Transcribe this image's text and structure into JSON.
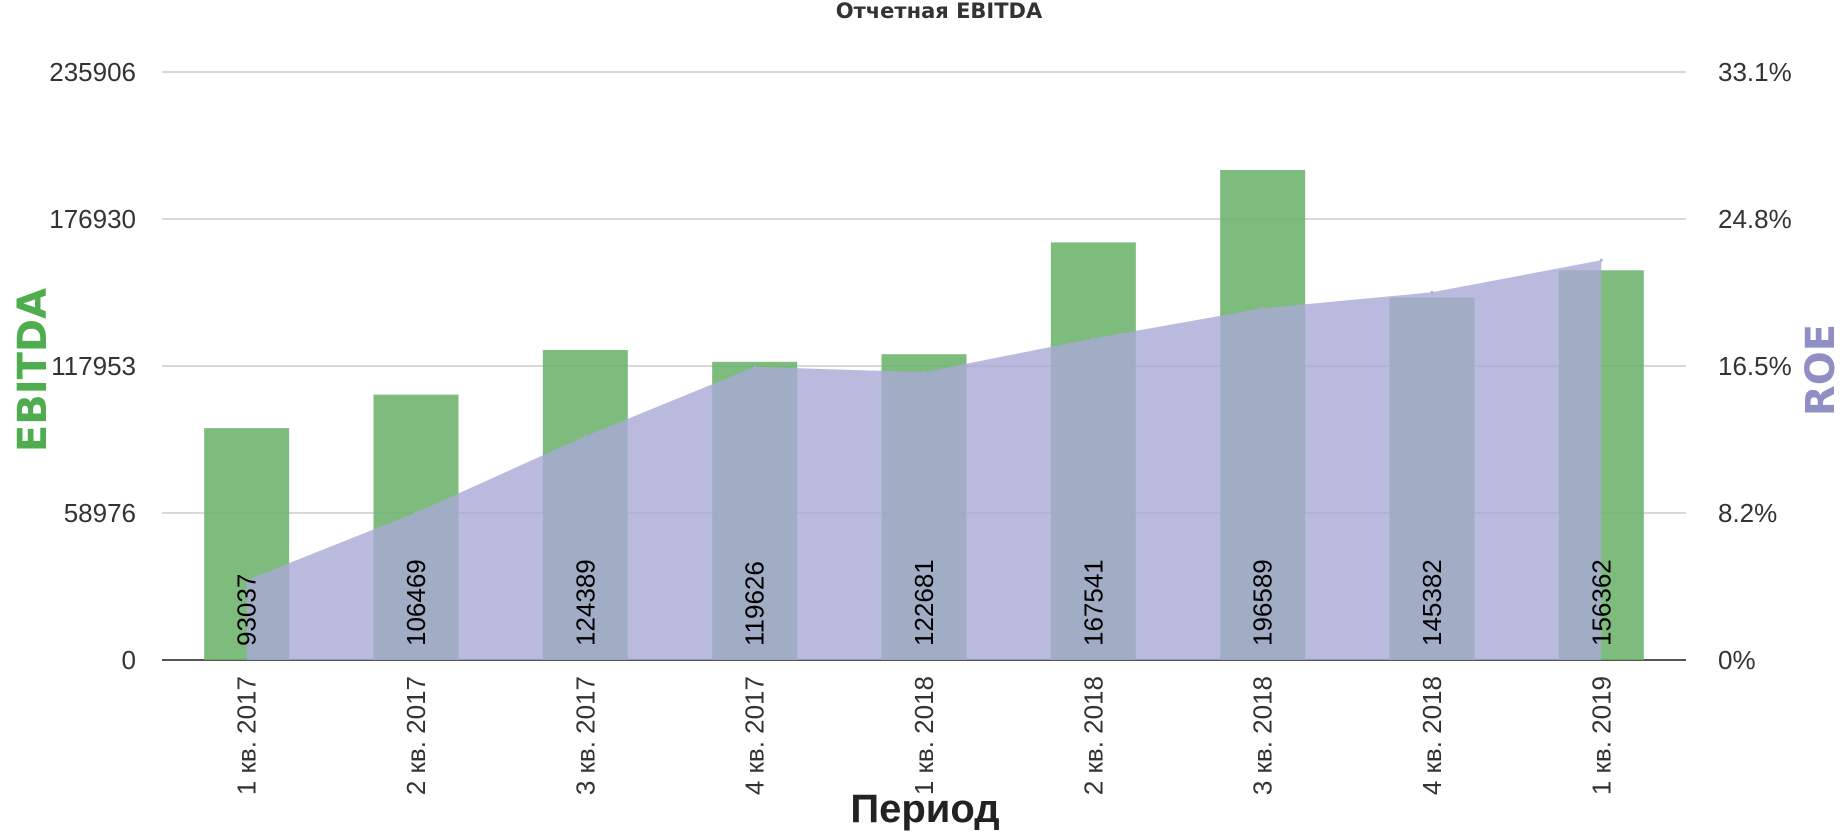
{
  "chart_data": {
    "type": "bar",
    "title": "Отчетная EBITDA",
    "xlabel": "Период",
    "ylabel": "EBITDA",
    "ylabel_right": "ROE",
    "categories": [
      "1 кв. 2017",
      "2 кв. 2017",
      "3 кв. 2017",
      "4 кв. 2017",
      "1 кв. 2018",
      "2 кв. 2018",
      "3 кв. 2018",
      "4 кв. 2018",
      "1 кв. 2019"
    ],
    "series": [
      {
        "name": "EBITDA",
        "type": "bar",
        "axis": "left",
        "color": "#6bb36b",
        "values": [
          93037,
          106469,
          124389,
          119626,
          122681,
          167541,
          196589,
          145382,
          156362
        ]
      },
      {
        "name": "ROE",
        "type": "area",
        "axis": "right",
        "color": "#a9a9d6",
        "values": [
          4.5,
          8.3,
          12.6,
          16.5,
          16.2,
          18.1,
          19.8,
          20.7,
          22.5
        ]
      }
    ],
    "y_left": {
      "ylim": [
        0,
        235906
      ],
      "ticks": [
        "0",
        "58976",
        "117953",
        "176930",
        "235906"
      ]
    },
    "y_right": {
      "ylim": [
        0,
        33.1
      ],
      "ticks": [
        "0%",
        "8.2%",
        "16.5%",
        "24.8%",
        "33.1%"
      ]
    },
    "grid": true,
    "legend": "none"
  }
}
